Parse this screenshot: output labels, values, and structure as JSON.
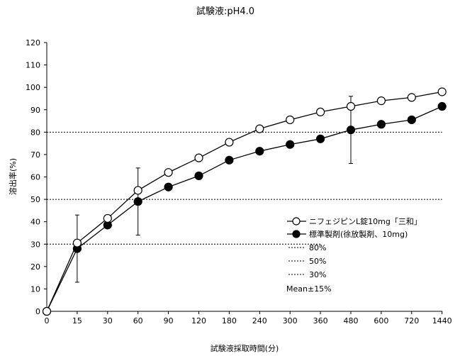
{
  "chart_data": {
    "type": "line",
    "title": "試験液:pH4.0",
    "xlabel": "試験液採取時間(分)",
    "ylabel": "溶出率(%)",
    "categories": [
      "0",
      "15",
      "30",
      "60",
      "90",
      "120",
      "180",
      "240",
      "300",
      "360",
      "480",
      "600",
      "720",
      "1440"
    ],
    "yticks": [
      "0",
      "10",
      "20",
      "30",
      "40",
      "50",
      "60",
      "70",
      "80",
      "90",
      "100",
      "110",
      "120"
    ],
    "ylim": [
      0,
      120
    ],
    "series": [
      {
        "name": "ニフェジピンL錠10mg「三和」",
        "marker": "open-circle",
        "values": [
          0,
          30.5,
          41.5,
          54,
          62,
          68.5,
          75.5,
          81.5,
          85.5,
          89,
          91.5,
          94,
          95.5,
          98
        ]
      },
      {
        "name": "標準製剤(徐放製剤、10mg)",
        "marker": "filled-circle",
        "values": [
          0,
          28,
          38.5,
          49,
          55.5,
          60.5,
          67.5,
          71.5,
          74.5,
          77,
          81,
          83.5,
          85.5,
          91.5
        ]
      }
    ],
    "error_bars": [
      {
        "category": "15",
        "low": 13,
        "high": 43
      },
      {
        "category": "60",
        "low": 34,
        "high": 64
      },
      {
        "category": "480",
        "low": 66,
        "high": 96
      }
    ],
    "reference_lines": [
      {
        "label": "80%",
        "y": 80,
        "x_end": "1440"
      },
      {
        "label": "50%",
        "y": 50,
        "x_end": "1440"
      },
      {
        "label": "30%",
        "y": 30,
        "x_end": "360"
      }
    ],
    "legend_note": "Mean±15%",
    "grid": false,
    "legend_position": "right"
  }
}
